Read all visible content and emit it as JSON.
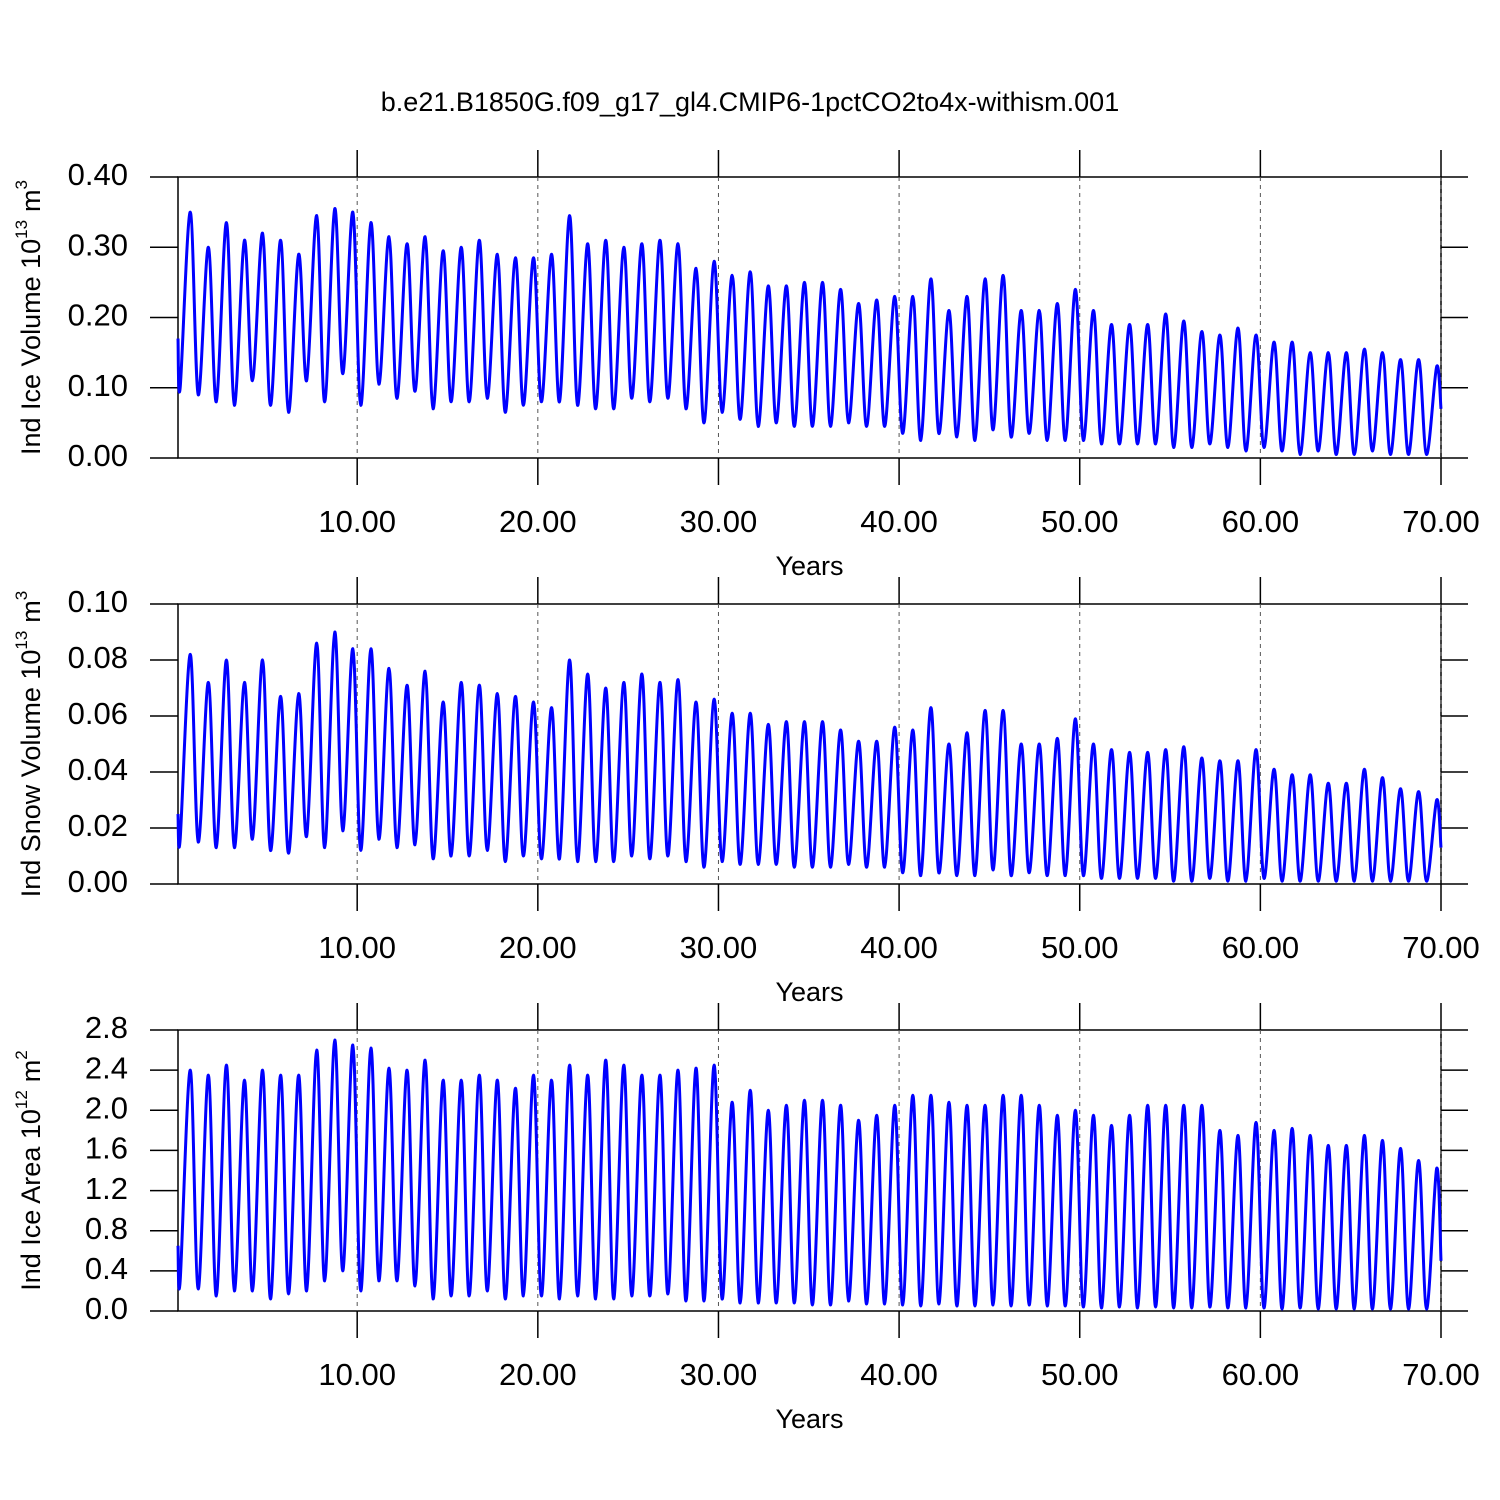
{
  "title": "b.e21.B1850G.f09_g17_gl4.CMIP6-1pctCO2to4x-withism.001",
  "chart_data": [
    {
      "type": "line",
      "xlabel": "Years",
      "ylabel": {
        "text": "Ind Ice Volume 10",
        "exponent": "13",
        "unit": "m",
        "unit_exponent": "3"
      },
      "x": [
        0.08,
        0.2,
        0.76,
        1.2,
        1.76,
        2.2,
        2.76,
        3.2,
        3.76,
        4.2,
        4.76,
        5.2,
        5.76,
        6.2,
        6.76,
        7.2,
        7.76,
        8.2,
        8.76,
        9.2,
        9.76,
        10.2,
        10.76,
        11.2,
        11.76,
        12.2,
        12.76,
        13.2,
        13.76,
        14.2,
        14.76,
        15.2,
        15.76,
        16.2,
        16.76,
        17.2,
        17.76,
        18.2,
        18.76,
        19.2,
        19.76,
        20.2,
        20.76,
        21.2,
        21.76,
        22.2,
        22.76,
        23.2,
        23.76,
        24.2,
        24.76,
        25.2,
        25.76,
        26.2,
        26.76,
        27.2,
        27.76,
        28.2,
        28.76,
        29.2,
        29.76,
        30.2,
        30.76,
        31.2,
        31.76,
        32.2,
        32.76,
        33.2,
        33.76,
        34.2,
        34.76,
        35.2,
        35.76,
        36.2,
        36.76,
        37.2,
        37.76,
        38.2,
        38.76,
        39.2,
        39.76,
        40.2,
        40.76,
        41.2,
        41.76,
        42.2,
        42.76,
        43.2,
        43.76,
        44.2,
        44.76,
        45.2,
        45.76,
        46.2,
        46.76,
        47.2,
        47.76,
        48.2,
        48.76,
        49.2,
        49.76,
        50.2,
        50.76,
        51.2,
        51.76,
        52.2,
        52.76,
        53.2,
        53.76,
        54.2,
        54.76,
        55.2,
        55.76,
        56.2,
        56.76,
        57.2,
        57.76,
        58.2,
        58.76,
        59.2,
        59.76,
        60.2,
        60.76,
        61.2,
        61.76,
        62.2,
        62.76,
        63.2,
        63.76,
        64.2,
        64.76,
        65.2,
        65.76,
        66.2,
        66.76,
        67.2,
        67.76,
        68.2,
        68.76,
        69.2,
        69.76,
        70
      ],
      "series": [
        {
          "color": "#0000ff",
          "values": [
            0.17,
            0.1,
            0.35,
            0.09,
            0.3,
            0.08,
            0.335,
            0.075,
            0.31,
            0.11,
            0.32,
            0.075,
            0.31,
            0.065,
            0.29,
            0.11,
            0.345,
            0.08,
            0.355,
            0.12,
            0.35,
            0.075,
            0.335,
            0.105,
            0.315,
            0.085,
            0.305,
            0.095,
            0.315,
            0.07,
            0.295,
            0.08,
            0.3,
            0.08,
            0.31,
            0.085,
            0.29,
            0.065,
            0.285,
            0.075,
            0.285,
            0.08,
            0.29,
            0.08,
            0.345,
            0.075,
            0.305,
            0.07,
            0.31,
            0.07,
            0.3,
            0.085,
            0.305,
            0.08,
            0.31,
            0.085,
            0.305,
            0.07,
            0.27,
            0.05,
            0.28,
            0.065,
            0.26,
            0.055,
            0.265,
            0.045,
            0.245,
            0.05,
            0.245,
            0.045,
            0.25,
            0.045,
            0.25,
            0.045,
            0.24,
            0.05,
            0.22,
            0.045,
            0.225,
            0.045,
            0.23,
            0.035,
            0.23,
            0.025,
            0.255,
            0.035,
            0.21,
            0.03,
            0.23,
            0.025,
            0.255,
            0.04,
            0.26,
            0.03,
            0.21,
            0.035,
            0.21,
            0.025,
            0.22,
            0.025,
            0.24,
            0.025,
            0.21,
            0.02,
            0.19,
            0.02,
            0.19,
            0.02,
            0.19,
            0.02,
            0.205,
            0.015,
            0.195,
            0.015,
            0.18,
            0.02,
            0.175,
            0.015,
            0.185,
            0.01,
            0.175,
            0.015,
            0.165,
            0.01,
            0.165,
            0.005,
            0.15,
            0.01,
            0.15,
            0.005,
            0.15,
            0.005,
            0.155,
            0.01,
            0.15,
            0.005,
            0.14,
            0.005,
            0.14,
            0.005,
            0.13,
            0.07
          ]
        }
      ],
      "xlim": [
        0.08,
        70
      ],
      "xticks": [
        {
          "value": 10,
          "label": "10.00"
        },
        {
          "value": 20,
          "label": "20.00"
        },
        {
          "value": 30,
          "label": "30.00"
        },
        {
          "value": 40,
          "label": "40.00"
        },
        {
          "value": 50,
          "label": "50.00"
        },
        {
          "value": 60,
          "label": "60.00"
        },
        {
          "value": 70,
          "label": "70.00"
        }
      ],
      "ylim": [
        0,
        0.4
      ],
      "yticks": [
        {
          "value": 0,
          "label": "0.00"
        },
        {
          "value": 0.1,
          "label": "0.10"
        },
        {
          "value": 0.2,
          "label": "0.20"
        },
        {
          "value": 0.3,
          "label": "0.30"
        },
        {
          "value": 0.4,
          "label": "0.40"
        }
      ],
      "xgrid": true
    },
    {
      "type": "line",
      "xlabel": "Years",
      "ylabel": {
        "text": "Ind Snow Volume 10",
        "exponent": "13",
        "unit": "m",
        "unit_exponent": "3"
      },
      "x": [
        0.08,
        0.2,
        0.76,
        1.2,
        1.76,
        2.2,
        2.76,
        3.2,
        3.76,
        4.2,
        4.76,
        5.2,
        5.76,
        6.2,
        6.76,
        7.2,
        7.76,
        8.2,
        8.76,
        9.2,
        9.76,
        10.2,
        10.76,
        11.2,
        11.76,
        12.2,
        12.76,
        13.2,
        13.76,
        14.2,
        14.76,
        15.2,
        15.76,
        16.2,
        16.76,
        17.2,
        17.76,
        18.2,
        18.76,
        19.2,
        19.76,
        20.2,
        20.76,
        21.2,
        21.76,
        22.2,
        22.76,
        23.2,
        23.76,
        24.2,
        24.76,
        25.2,
        25.76,
        26.2,
        26.76,
        27.2,
        27.76,
        28.2,
        28.76,
        29.2,
        29.76,
        30.2,
        30.76,
        31.2,
        31.76,
        32.2,
        32.76,
        33.2,
        33.76,
        34.2,
        34.76,
        35.2,
        35.76,
        36.2,
        36.76,
        37.2,
        37.76,
        38.2,
        38.76,
        39.2,
        39.76,
        40.2,
        40.76,
        41.2,
        41.76,
        42.2,
        42.76,
        43.2,
        43.76,
        44.2,
        44.76,
        45.2,
        45.76,
        46.2,
        46.76,
        47.2,
        47.76,
        48.2,
        48.76,
        49.2,
        49.76,
        50.2,
        50.76,
        51.2,
        51.76,
        52.2,
        52.76,
        53.2,
        53.76,
        54.2,
        54.76,
        55.2,
        55.76,
        56.2,
        56.76,
        57.2,
        57.76,
        58.2,
        58.76,
        59.2,
        59.76,
        60.2,
        60.76,
        61.2,
        61.76,
        62.2,
        62.76,
        63.2,
        63.76,
        64.2,
        64.76,
        65.2,
        65.76,
        66.2,
        66.76,
        67.2,
        67.76,
        68.2,
        68.76,
        69.2,
        69.76,
        70
      ],
      "series": [
        {
          "color": "#0000ff",
          "values": [
            0.025,
            0.016,
            0.082,
            0.015,
            0.072,
            0.013,
            0.08,
            0.013,
            0.072,
            0.016,
            0.08,
            0.012,
            0.067,
            0.011,
            0.068,
            0.017,
            0.086,
            0.013,
            0.09,
            0.019,
            0.084,
            0.012,
            0.084,
            0.016,
            0.077,
            0.013,
            0.071,
            0.014,
            0.076,
            0.009,
            0.065,
            0.01,
            0.072,
            0.01,
            0.071,
            0.012,
            0.068,
            0.008,
            0.067,
            0.01,
            0.065,
            0.009,
            0.063,
            0.009,
            0.08,
            0.008,
            0.075,
            0.008,
            0.07,
            0.008,
            0.072,
            0.01,
            0.075,
            0.009,
            0.072,
            0.01,
            0.073,
            0.008,
            0.065,
            0.006,
            0.066,
            0.008,
            0.061,
            0.007,
            0.061,
            0.007,
            0.057,
            0.007,
            0.058,
            0.006,
            0.058,
            0.006,
            0.058,
            0.006,
            0.055,
            0.007,
            0.051,
            0.006,
            0.051,
            0.006,
            0.056,
            0.004,
            0.055,
            0.003,
            0.063,
            0.004,
            0.05,
            0.003,
            0.054,
            0.003,
            0.062,
            0.005,
            0.062,
            0.003,
            0.05,
            0.004,
            0.05,
            0.003,
            0.052,
            0.003,
            0.059,
            0.003,
            0.05,
            0.002,
            0.048,
            0.002,
            0.047,
            0.002,
            0.047,
            0.002,
            0.048,
            0.001,
            0.049,
            0.001,
            0.045,
            0.002,
            0.044,
            0.001,
            0.044,
            0.001,
            0.048,
            0.002,
            0.041,
            0.001,
            0.039,
            0.001,
            0.039,
            0.001,
            0.036,
            0.001,
            0.036,
            0.001,
            0.041,
            0.001,
            0.038,
            0.001,
            0.034,
            0.001,
            0.033,
            0.001,
            0.03,
            0.013
          ]
        }
      ],
      "xlim": [
        0.08,
        70
      ],
      "xticks": [
        {
          "value": 10,
          "label": "10.00"
        },
        {
          "value": 20,
          "label": "20.00"
        },
        {
          "value": 30,
          "label": "30.00"
        },
        {
          "value": 40,
          "label": "40.00"
        },
        {
          "value": 50,
          "label": "50.00"
        },
        {
          "value": 60,
          "label": "60.00"
        },
        {
          "value": 70,
          "label": "70.00"
        }
      ],
      "ylim": [
        0,
        0.1
      ],
      "yticks": [
        {
          "value": 0,
          "label": "0.00"
        },
        {
          "value": 0.02,
          "label": "0.02"
        },
        {
          "value": 0.04,
          "label": "0.04"
        },
        {
          "value": 0.06,
          "label": "0.06"
        },
        {
          "value": 0.08,
          "label": "0.08"
        },
        {
          "value": 0.1,
          "label": "0.10"
        }
      ],
      "xgrid": true
    },
    {
      "type": "line",
      "xlabel": "Years",
      "ylabel": {
        "text": "Ind Ice Area 10",
        "exponent": "12",
        "unit": "m",
        "unit_exponent": "2"
      },
      "x": [
        0.08,
        0.2,
        0.76,
        1.2,
        1.76,
        2.2,
        2.76,
        3.2,
        3.76,
        4.2,
        4.76,
        5.2,
        5.76,
        6.2,
        6.76,
        7.2,
        7.76,
        8.2,
        8.76,
        9.2,
        9.76,
        10.2,
        10.76,
        11.2,
        11.76,
        12.2,
        12.76,
        13.2,
        13.76,
        14.2,
        14.76,
        15.2,
        15.76,
        16.2,
        16.76,
        17.2,
        17.76,
        18.2,
        18.76,
        19.2,
        19.76,
        20.2,
        20.76,
        21.2,
        21.76,
        22.2,
        22.76,
        23.2,
        23.76,
        24.2,
        24.76,
        25.2,
        25.76,
        26.2,
        26.76,
        27.2,
        27.76,
        28.2,
        28.76,
        29.2,
        29.76,
        30.2,
        30.76,
        31.2,
        31.76,
        32.2,
        32.76,
        33.2,
        33.76,
        34.2,
        34.76,
        35.2,
        35.76,
        36.2,
        36.76,
        37.2,
        37.76,
        38.2,
        38.76,
        39.2,
        39.76,
        40.2,
        40.76,
        41.2,
        41.76,
        42.2,
        42.76,
        43.2,
        43.76,
        44.2,
        44.76,
        45.2,
        45.76,
        46.2,
        46.76,
        47.2,
        47.76,
        48.2,
        48.76,
        49.2,
        49.76,
        50.2,
        50.76,
        51.2,
        51.76,
        52.2,
        52.76,
        53.2,
        53.76,
        54.2,
        54.76,
        55.2,
        55.76,
        56.2,
        56.76,
        57.2,
        57.76,
        58.2,
        58.76,
        59.2,
        59.76,
        60.2,
        60.76,
        61.2,
        61.76,
        62.2,
        62.76,
        63.2,
        63.76,
        64.2,
        64.76,
        65.2,
        65.76,
        66.2,
        66.76,
        67.2,
        67.76,
        68.2,
        68.76,
        69.2,
        69.76,
        70
      ],
      "series": [
        {
          "color": "#0000ff",
          "values": [
            0.65,
            0.3,
            2.4,
            0.22,
            2.35,
            0.15,
            2.45,
            0.2,
            2.3,
            0.2,
            2.4,
            0.12,
            2.35,
            0.17,
            2.35,
            0.2,
            2.6,
            0.3,
            2.7,
            0.4,
            2.65,
            0.2,
            2.62,
            0.3,
            2.42,
            0.3,
            2.4,
            0.25,
            2.5,
            0.12,
            2.3,
            0.15,
            2.3,
            0.15,
            2.35,
            0.2,
            2.3,
            0.12,
            2.22,
            0.15,
            2.35,
            0.15,
            2.3,
            0.12,
            2.45,
            0.15,
            2.35,
            0.12,
            2.5,
            0.12,
            2.45,
            0.15,
            2.35,
            0.15,
            2.35,
            0.17,
            2.4,
            0.1,
            2.42,
            0.1,
            2.45,
            0.12,
            2.08,
            0.08,
            2.2,
            0.08,
            2.0,
            0.08,
            2.05,
            0.08,
            2.1,
            0.06,
            2.1,
            0.06,
            2.05,
            0.1,
            1.9,
            0.07,
            1.95,
            0.07,
            2.05,
            0.06,
            2.15,
            0.05,
            2.15,
            0.07,
            2.08,
            0.05,
            2.05,
            0.05,
            2.05,
            0.06,
            2.15,
            0.05,
            2.15,
            0.06,
            2.05,
            0.05,
            1.95,
            0.05,
            2.0,
            0.04,
            1.95,
            0.03,
            1.85,
            0.04,
            1.95,
            0.03,
            2.05,
            0.04,
            2.05,
            0.03,
            2.05,
            0.03,
            2.05,
            0.04,
            1.8,
            0.03,
            1.75,
            0.03,
            1.88,
            0.03,
            1.8,
            0.02,
            1.82,
            0.03,
            1.75,
            0.02,
            1.65,
            0.02,
            1.65,
            0.02,
            1.75,
            0.02,
            1.7,
            0.02,
            1.62,
            0.02,
            1.5,
            0.02,
            1.42,
            0.5
          ]
        }
      ],
      "xlim": [
        0.08,
        70
      ],
      "xticks": [
        {
          "value": 10,
          "label": "10.00"
        },
        {
          "value": 20,
          "label": "20.00"
        },
        {
          "value": 30,
          "label": "30.00"
        },
        {
          "value": 40,
          "label": "40.00"
        },
        {
          "value": 50,
          "label": "50.00"
        },
        {
          "value": 60,
          "label": "60.00"
        },
        {
          "value": 70,
          "label": "70.00"
        }
      ],
      "ylim": [
        0,
        2.8
      ],
      "yticks": [
        {
          "value": 0,
          "label": "0.0"
        },
        {
          "value": 0.4,
          "label": "0.4"
        },
        {
          "value": 0.8,
          "label": "0.8"
        },
        {
          "value": 1.2,
          "label": "1.2"
        },
        {
          "value": 1.6,
          "label": "1.6"
        },
        {
          "value": 2.0,
          "label": "2.0"
        },
        {
          "value": 2.4,
          "label": "2.4"
        },
        {
          "value": 2.8,
          "label": "2.8"
        }
      ],
      "xgrid": true
    }
  ]
}
